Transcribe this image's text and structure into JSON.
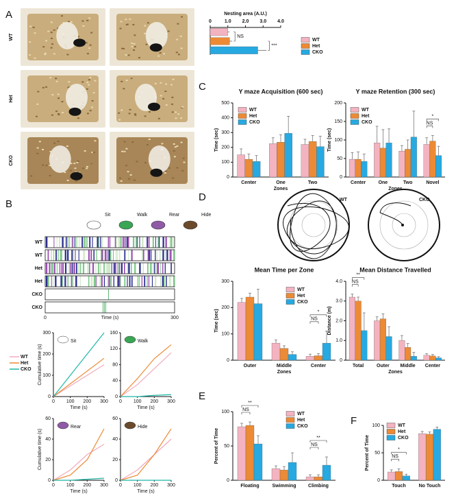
{
  "panel_labels": [
    "A",
    "B",
    "C",
    "D",
    "E",
    "F"
  ],
  "photo_rows": [
    "WT",
    "Het",
    "CKO"
  ],
  "ethogram": {
    "behaviors": [
      "Sit",
      "Walk",
      "Rear",
      "Hide"
    ],
    "rows": [
      "WT",
      "WT",
      "Het",
      "Het",
      "CKO",
      "CKO"
    ],
    "xlabel": "Time (s)",
    "xticks": [
      0,
      300
    ]
  },
  "tracks": [
    "WT",
    "CKO"
  ],
  "chart_data": [
    {
      "type": "hbar",
      "title": "Nesting area (A.U.)",
      "categories": [
        "WT",
        "Het",
        "CKO"
      ],
      "values": [
        1.0,
        1.1,
        2.7
      ],
      "errors": [
        0.1,
        0.15,
        0.5
      ],
      "colors": [
        "#f4b3c0",
        "#ec8a35",
        "#27a9e1"
      ],
      "xlim": [
        0,
        4
      ],
      "xticks": [
        0,
        {
          "value": 1,
          "label": "1.0"
        },
        {
          "value": 2,
          "label": "2.0"
        },
        {
          "value": 3,
          "label": "3.0"
        },
        {
          "value": 4,
          "label": "4.0"
        }
      ],
      "legend": true,
      "annotations": [
        {
          "text": "NS",
          "categories": [
            "WT",
            "Het"
          ]
        },
        {
          "text": "***",
          "categories": [
            "Het",
            "CKO"
          ]
        }
      ]
    },
    {
      "type": "bar",
      "title": "Y maze Acquisition (600 sec)",
      "categories": [
        "Center",
        "One",
        "Two"
      ],
      "xlabel": "Zones",
      "ylabel": "Time (sec)",
      "ylim": [
        0,
        500
      ],
      "yticks": [
        0,
        100,
        200,
        300,
        400,
        500
      ],
      "legend": true,
      "series": [
        {
          "name": "WT",
          "color": "#f4b3c0",
          "values": [
            150,
            225,
            220
          ],
          "errors": [
            40,
            40,
            35
          ]
        },
        {
          "name": "Het",
          "color": "#ec8a35",
          "values": [
            120,
            235,
            240
          ],
          "errors": [
            35,
            50,
            40
          ]
        },
        {
          "name": "CKO",
          "color": "#27a9e1",
          "values": [
            105,
            295,
            205
          ],
          "errors": [
            40,
            115,
            70
          ]
        }
      ],
      "annotations": []
    },
    {
      "type": "bar",
      "title": "Y maze Retention (300 sec)",
      "categories": [
        "Center",
        "One",
        "Two",
        "Novel"
      ],
      "xlabel": "Zones",
      "ylabel": "Time (sec)",
      "ylim": [
        0,
        200
      ],
      "yticks": [
        0,
        50,
        100,
        150,
        200
      ],
      "legend": true,
      "series": [
        {
          "name": "WT",
          "color": "#f4b3c0",
          "values": [
            48,
            92,
            70,
            88
          ],
          "errors": [
            18,
            45,
            15,
            18
          ]
        },
        {
          "name": "Het",
          "color": "#ec8a35",
          "values": [
            48,
            78,
            75,
            97
          ],
          "errors": [
            20,
            50,
            25,
            15
          ]
        },
        {
          "name": "CKO",
          "color": "#27a9e1",
          "values": [
            42,
            92,
            108,
            58
          ],
          "errors": [
            20,
            38,
            70,
            25
          ]
        }
      ],
      "annotations": [
        {
          "text": "NS",
          "category": "Novel",
          "series": [
            "WT",
            "Het"
          ]
        },
        {
          "text": "*",
          "category": "Novel",
          "series": [
            "WT",
            "CKO"
          ]
        }
      ]
    },
    {
      "type": "bar",
      "title": "Mean Time per Zone",
      "categories": [
        "Outer",
        "Middle",
        "Center"
      ],
      "xlabel": "Zones",
      "ylabel": "Time (sec)",
      "ylim": [
        0,
        300
      ],
      "yticks": [
        0,
        100,
        200,
        300
      ],
      "legend": true,
      "series": [
        {
          "name": "WT",
          "color": "#f4b3c0",
          "values": [
            220,
            65,
            15
          ],
          "errors": [
            15,
            12,
            8
          ]
        },
        {
          "name": "Het",
          "color": "#ec8a35",
          "values": [
            240,
            45,
            17
          ],
          "errors": [
            15,
            10,
            8
          ]
        },
        {
          "name": "CKO",
          "color": "#27a9e1",
          "values": [
            215,
            22,
            65
          ],
          "errors": [
            55,
            10,
            45
          ]
        }
      ],
      "annotations": [
        {
          "text": "NS",
          "category": "Center",
          "series": [
            "WT",
            "Het"
          ]
        },
        {
          "text": "*",
          "category": "Center",
          "series": [
            "WT",
            "CKO"
          ]
        }
      ]
    },
    {
      "type": "bar",
      "title": "Mean Distance Travelled",
      "categories": [
        "Total",
        "Outer",
        "Middle",
        "Center"
      ],
      "xlabel": "Zones",
      "ylabel": "Distance (m)",
      "ylim": [
        0,
        4
      ],
      "yticks": [
        0,
        {
          "value": 1,
          "label": "1.0"
        },
        {
          "value": 2,
          "label": "2.0"
        },
        {
          "value": 3,
          "label": "3.0"
        },
        {
          "value": 4,
          "label": "4.0"
        }
      ],
      "legend": false,
      "series": [
        {
          "name": "WT",
          "color": "#f4b3c0",
          "values": [
            3.2,
            2.0,
            1.0,
            0.25
          ],
          "errors": [
            0.15,
            0.2,
            0.25,
            0.08
          ]
        },
        {
          "name": "Het",
          "color": "#ec8a35",
          "values": [
            3.0,
            2.1,
            0.65,
            0.22
          ],
          "errors": [
            0.2,
            0.25,
            0.2,
            0.07
          ]
        },
        {
          "name": "CKO",
          "color": "#27a9e1",
          "values": [
            1.5,
            1.2,
            0.2,
            0.12
          ],
          "errors": [
            0.9,
            0.5,
            0.2,
            0.06
          ]
        }
      ],
      "annotations": [
        {
          "text": "NS",
          "category": "Total",
          "series": [
            "WT",
            "Het"
          ]
        },
        {
          "text": "**",
          "category": "Total",
          "series": [
            "WT",
            "CKO"
          ]
        }
      ]
    },
    {
      "type": "line",
      "title": "Sit",
      "ylabel": "Cumulative time (s)",
      "xlabel": "Time (s)",
      "x": [
        0,
        100,
        200,
        300
      ],
      "xlim": [
        0,
        300
      ],
      "xticks": [
        0,
        100,
        200,
        300
      ],
      "ylim": [
        0,
        300
      ],
      "yticks": [
        0,
        100,
        200,
        300
      ],
      "legend": true,
      "series": [
        {
          "name": "WT",
          "color": "#f2aabb",
          "values": [
            0,
            50,
            100,
            150
          ]
        },
        {
          "name": "Het",
          "color": "#ec8a35",
          "values": [
            0,
            60,
            120,
            180
          ]
        },
        {
          "name": "CKO",
          "color": "#1fb5a6",
          "values": [
            0,
            100,
            200,
            300
          ]
        }
      ]
    },
    {
      "type": "line",
      "title": "Walk",
      "xlabel": "Time (s)",
      "x": [
        0,
        100,
        200,
        300
      ],
      "xlim": [
        0,
        300
      ],
      "xticks": [
        0,
        100,
        200,
        300
      ],
      "ylim": [
        0,
        160
      ],
      "yticks": [
        0,
        40,
        80,
        120,
        160
      ],
      "legend": false,
      "series": [
        {
          "name": "WT",
          "color": "#f2aabb",
          "values": [
            0,
            30,
            70,
            110
          ]
        },
        {
          "name": "Het",
          "color": "#ec8a35",
          "values": [
            0,
            45,
            95,
            130
          ]
        },
        {
          "name": "CKO",
          "color": "#1fb5a6",
          "values": [
            0,
            0,
            3,
            5
          ]
        }
      ]
    },
    {
      "type": "line",
      "title": "Rear",
      "ylabel": "Cumulative time (s)",
      "xlabel": "Time (s)",
      "x": [
        0,
        100,
        200,
        300
      ],
      "xlim": [
        0,
        300
      ],
      "xticks": [
        0,
        100,
        200,
        300
      ],
      "ylim": [
        0,
        60
      ],
      "yticks": [
        0,
        20,
        40,
        60
      ],
      "legend": false,
      "series": [
        {
          "name": "WT",
          "color": "#f2aabb",
          "values": [
            0,
            10,
            25,
            35
          ]
        },
        {
          "name": "Het",
          "color": "#ec8a35",
          "values": [
            0,
            5,
            20,
            50
          ]
        },
        {
          "name": "CKO",
          "color": "#1fb5a6",
          "values": [
            0,
            0,
            1,
            2
          ]
        }
      ]
    },
    {
      "type": "line",
      "title": "Hide",
      "xlabel": "Time (s)",
      "x": [
        0,
        100,
        200,
        300
      ],
      "xlim": [
        0,
        300
      ],
      "xticks": [
        0,
        100,
        200,
        300
      ],
      "ylim": [
        0,
        60
      ],
      "yticks": [
        0,
        20,
        40,
        60
      ],
      "legend": false,
      "series": [
        {
          "name": "WT",
          "color": "#f2aabb",
          "values": [
            0,
            10,
            25,
            40
          ]
        },
        {
          "name": "Het",
          "color": "#ec8a35",
          "values": [
            0,
            5,
            25,
            50
          ]
        },
        {
          "name": "CKO",
          "color": "#1fb5a6",
          "values": [
            0,
            0,
            0,
            0
          ]
        }
      ]
    },
    {
      "type": "bar",
      "categories": [
        "Floating",
        "Swimming",
        "Climbing"
      ],
      "ylabel": "Percent of Time",
      "ylim": [
        0,
        100
      ],
      "yticks": [
        0,
        50,
        100
      ],
      "legend": true,
      "series": [
        {
          "name": "WT",
          "color": "#f4b3c0",
          "values": [
            78,
            17,
            5
          ],
          "errors": [
            5,
            4,
            3
          ]
        },
        {
          "name": "Het",
          "color": "#ec8a35",
          "values": [
            80,
            15,
            5
          ],
          "errors": [
            5,
            5,
            3
          ]
        },
        {
          "name": "CKO",
          "color": "#27a9e1",
          "values": [
            53,
            26,
            22
          ],
          "errors": [
            12,
            14,
            12
          ]
        }
      ],
      "annotations": [
        {
          "text": "NS",
          "category": "Floating",
          "series": [
            "WT",
            "Het"
          ]
        },
        {
          "text": "**",
          "category": "Floating",
          "series": [
            "WT",
            "CKO"
          ]
        },
        {
          "text": "NS",
          "category": "Climbing",
          "series": [
            "WT",
            "Het"
          ]
        },
        {
          "text": "**",
          "category": "Climbing",
          "series": [
            "WT",
            "CKO"
          ]
        }
      ]
    },
    {
      "type": "bar",
      "categories": [
        "Touch",
        "No Touch"
      ],
      "ylabel": "Percent of Time",
      "ylim": [
        0,
        100
      ],
      "yticks": [
        0,
        50,
        100
      ],
      "legend": true,
      "series": [
        {
          "name": "WT",
          "color": "#f4b3c0",
          "values": [
            15,
            85
          ],
          "errors": [
            4,
            4
          ]
        },
        {
          "name": "Het",
          "color": "#ec8a35",
          "values": [
            16,
            84
          ],
          "errors": [
            5,
            4
          ]
        },
        {
          "name": "CKO",
          "color": "#27a9e1",
          "values": [
            8,
            93
          ],
          "errors": [
            3,
            4
          ]
        }
      ],
      "annotations": [
        {
          "text": "NS",
          "category": "Touch",
          "series": [
            "WT",
            "Het"
          ]
        },
        {
          "text": "*",
          "category": "Touch",
          "series": [
            "WT",
            "CKO"
          ]
        }
      ]
    }
  ]
}
